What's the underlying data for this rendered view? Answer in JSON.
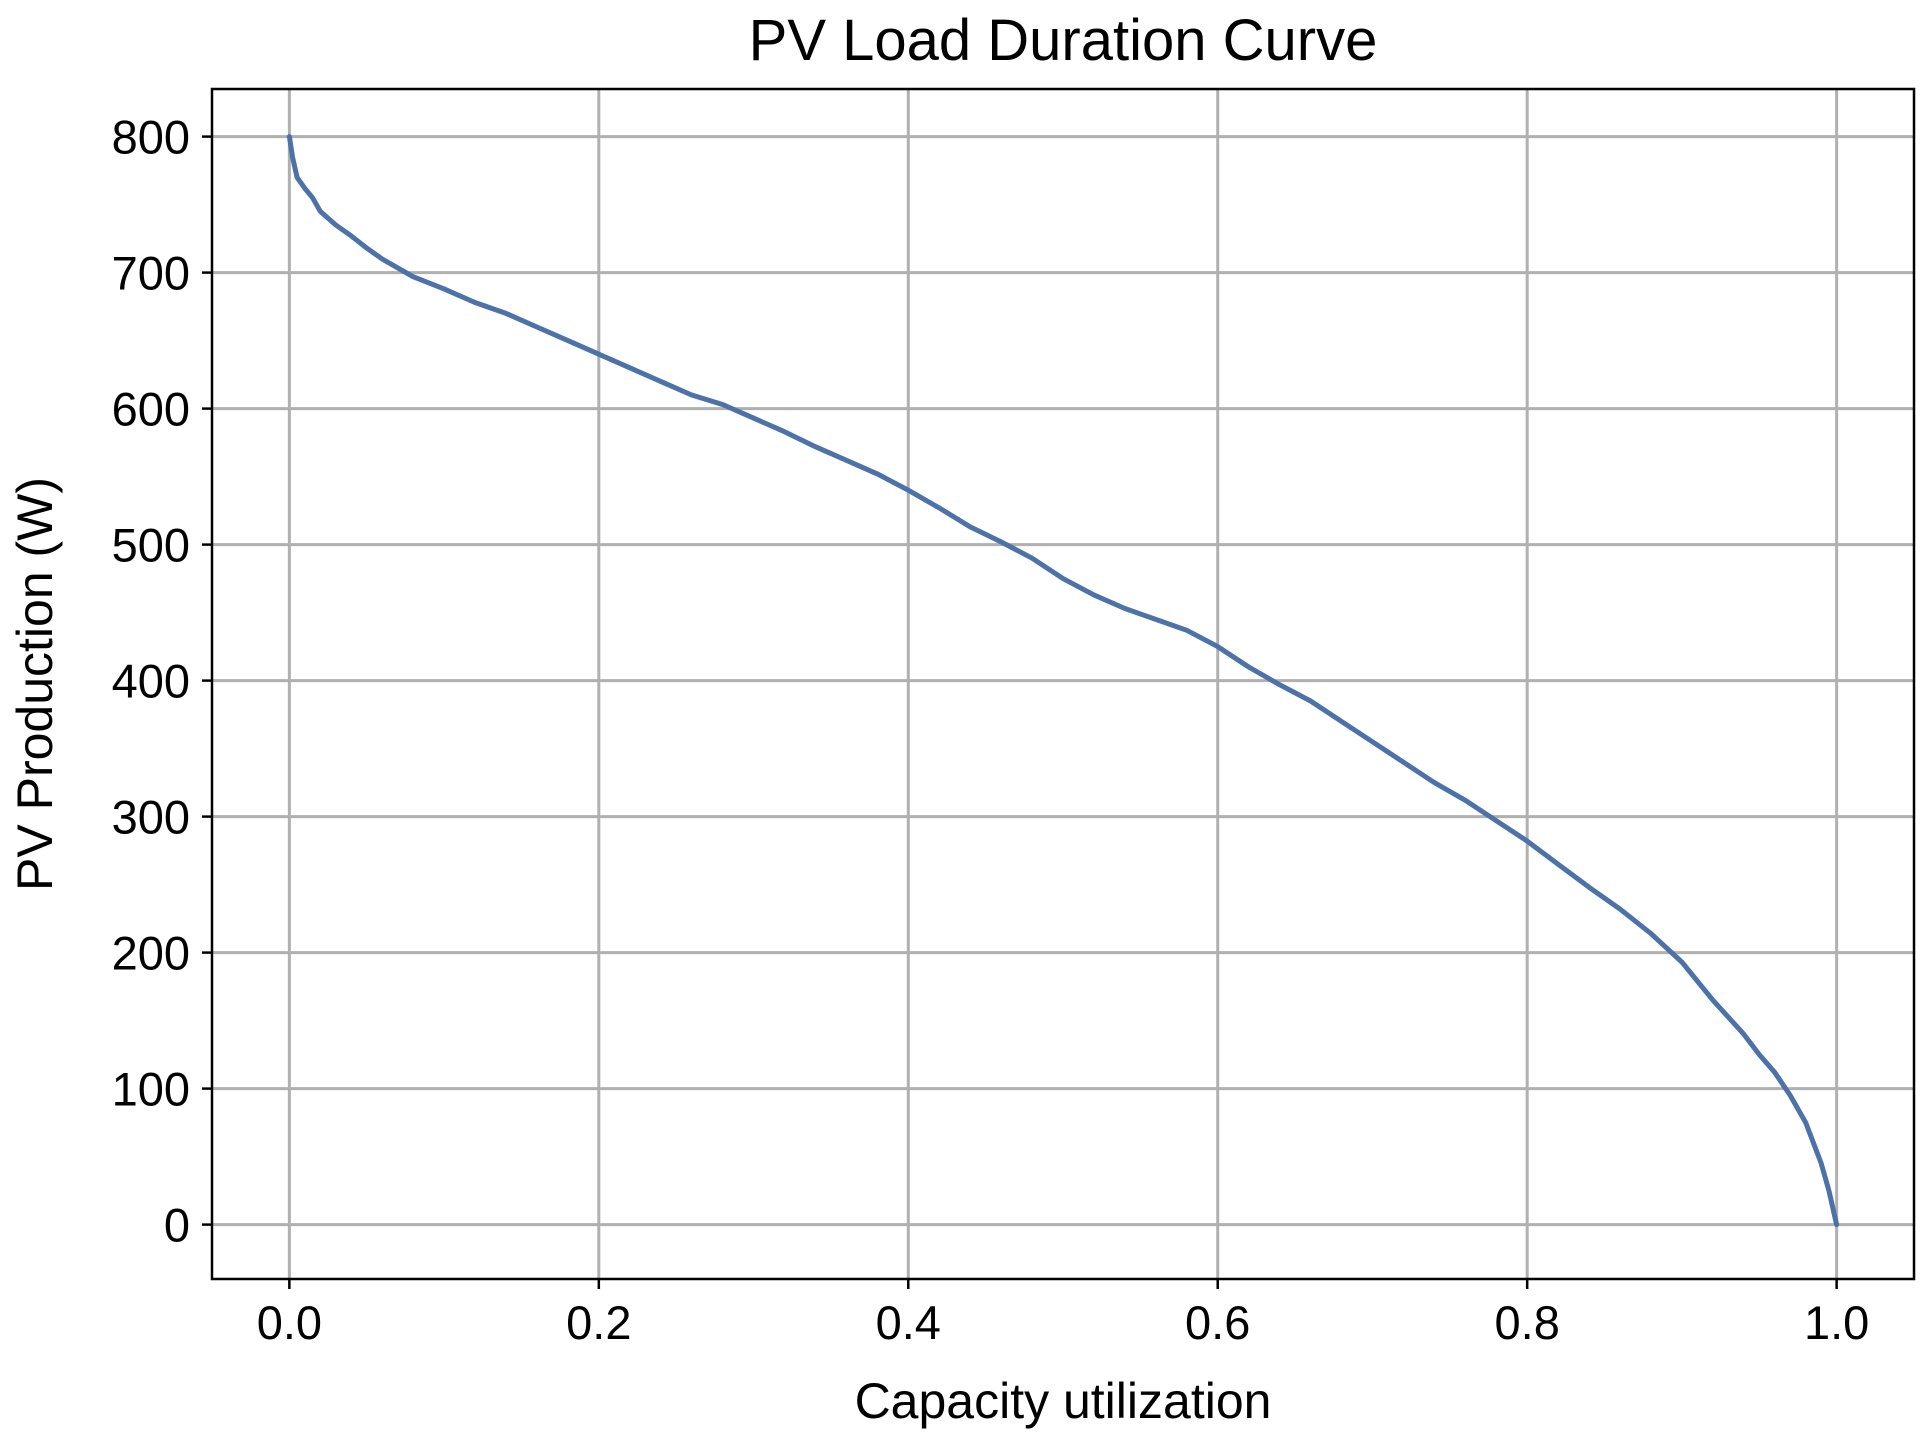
{
  "chart_data": {
    "type": "line",
    "title": "PV Load Duration Curve",
    "xlabel": "Capacity utilization",
    "ylabel": "PV Production (W)",
    "xlim": [
      -0.05,
      1.05
    ],
    "ylim": [
      -40,
      835
    ],
    "xticks": [
      0.0,
      0.2,
      0.4,
      0.6,
      0.8,
      1.0
    ],
    "xtick_labels": [
      "0.0",
      "0.2",
      "0.4",
      "0.6",
      "0.8",
      "1.0"
    ],
    "yticks": [
      0,
      100,
      200,
      300,
      400,
      500,
      600,
      700,
      800
    ],
    "ytick_labels": [
      "0",
      "100",
      "200",
      "300",
      "400",
      "500",
      "600",
      "700",
      "800"
    ],
    "grid": true,
    "legend": "none",
    "colors": {
      "line": "#4c72a8",
      "grid": "#b0b0b0",
      "axes": "#000000"
    },
    "series": [
      {
        "x": [
          0.0,
          0.002,
          0.005,
          0.01,
          0.015,
          0.02,
          0.03,
          0.04,
          0.05,
          0.06,
          0.08,
          0.1,
          0.12,
          0.14,
          0.16,
          0.18,
          0.2,
          0.22,
          0.24,
          0.26,
          0.28,
          0.3,
          0.32,
          0.34,
          0.36,
          0.38,
          0.4,
          0.42,
          0.44,
          0.46,
          0.48,
          0.5,
          0.52,
          0.54,
          0.56,
          0.58,
          0.6,
          0.62,
          0.64,
          0.66,
          0.68,
          0.7,
          0.72,
          0.74,
          0.76,
          0.78,
          0.8,
          0.82,
          0.84,
          0.86,
          0.88,
          0.9,
          0.92,
          0.94,
          0.95,
          0.96,
          0.97,
          0.98,
          0.99,
          0.995,
          1.0
        ],
        "y": [
          800,
          785,
          770,
          762,
          755,
          745,
          735,
          727,
          718,
          710,
          697,
          688,
          678,
          670,
          660,
          650,
          640,
          630,
          620,
          610,
          603,
          593,
          583,
          572,
          562,
          552,
          540,
          527,
          513,
          502,
          490,
          475,
          463,
          453,
          445,
          437,
          425,
          410,
          397,
          385,
          370,
          355,
          340,
          325,
          312,
          297,
          282,
          265,
          248,
          232,
          214,
          193,
          165,
          140,
          125,
          112,
          95,
          75,
          45,
          25,
          0
        ]
      }
    ]
  }
}
